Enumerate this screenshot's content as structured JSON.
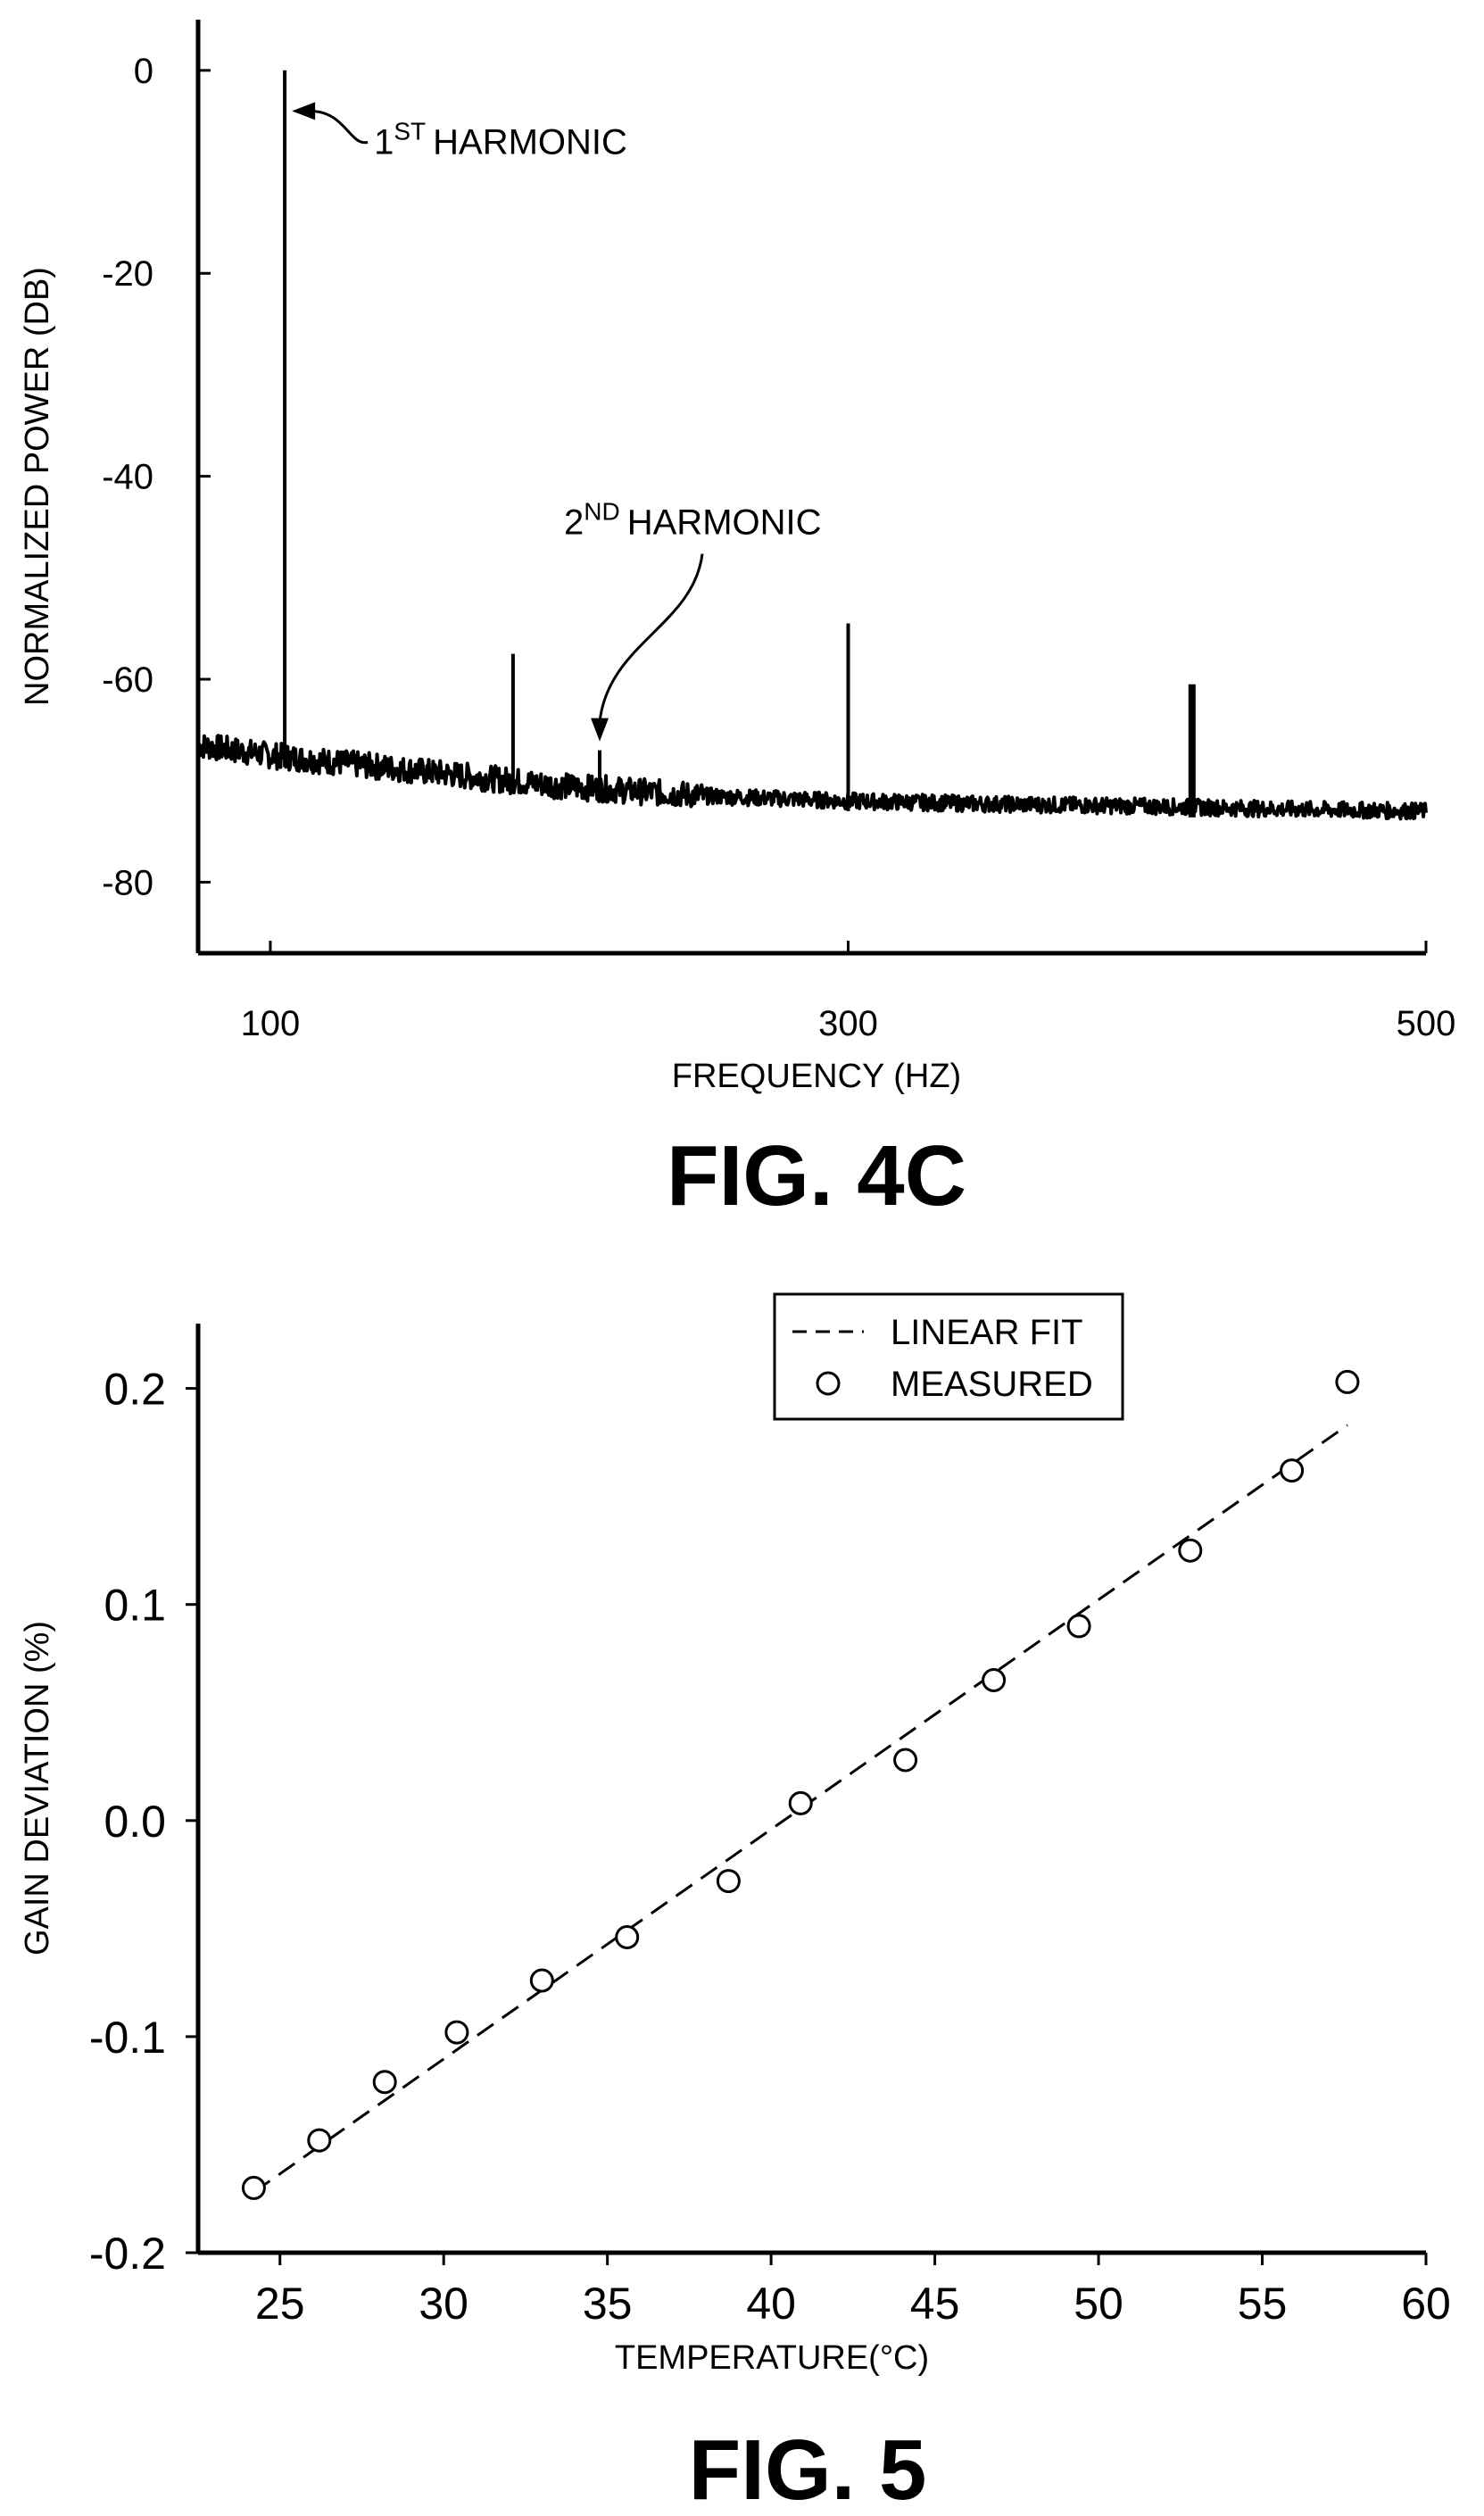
{
  "chart_data": [
    {
      "type": "line",
      "figure_label": "FIG. 4C",
      "xlabel": "FREQUENCY (HZ)",
      "ylabel": "NORMALIZED POWER (DB)",
      "xlim": [
        75,
        500
      ],
      "ylim": [
        -87,
        5
      ],
      "x_ticks": [
        100,
        300,
        500
      ],
      "y_ticks": [
        0,
        -20,
        -40,
        -60,
        -80
      ],
      "grid": false,
      "noise_floor": {
        "x": [
          75,
          100,
          150,
          200,
          250,
          300,
          350,
          400,
          450,
          500
        ],
        "y": [
          -66.5,
          -67.5,
          -69,
          -70.5,
          -71.5,
          -72,
          -72.3,
          -72.5,
          -72.8,
          -73
        ]
      },
      "peaks": [
        {
          "x": 105,
          "y": 0
        },
        {
          "x": 184,
          "y": -57.5
        },
        {
          "x": 214,
          "y": -67
        },
        {
          "x": 300,
          "y": -54.5
        },
        {
          "x": 419,
          "y": -60.5
        }
      ],
      "annotations": [
        {
          "sup": "ST",
          "prefix": "1",
          "text": "HARMONIC",
          "target_x": 105,
          "target_y": -4
        },
        {
          "sup": "ND",
          "prefix": "2",
          "text": "HARMONIC",
          "target_x": 214,
          "target_y": -67
        }
      ]
    },
    {
      "type": "scatter",
      "figure_label": "FIG. 5",
      "xlabel": "TEMPERATURE(°C)",
      "ylabel": "GAIN DEVIATION (%)",
      "xlim": [
        22.5,
        60
      ],
      "ylim": [
        -0.2,
        0.23
      ],
      "x_ticks": [
        25,
        30,
        35,
        40,
        45,
        50,
        55,
        60
      ],
      "y_ticks": [
        "0.2",
        "0.1",
        "0.0",
        "-0.1",
        "-0.2"
      ],
      "y_tick_values": [
        0.2,
        0.1,
        0.0,
        -0.1,
        -0.2
      ],
      "grid": false,
      "legend_position": "top-center",
      "series": [
        {
          "name": "LINEAR FIT",
          "style": "dashed-line",
          "x": [
            24.2,
            57.6
          ],
          "y": [
            -0.172,
            0.183
          ]
        },
        {
          "name": "MEASURED",
          "style": "open-circle",
          "x": [
            24.2,
            26.2,
            28.2,
            30.4,
            33.0,
            35.6,
            38.7,
            40.9,
            44.1,
            46.8,
            49.4,
            52.8,
            55.9,
            57.6
          ],
          "y": [
            -0.17,
            -0.148,
            -0.121,
            -0.098,
            -0.074,
            -0.054,
            -0.028,
            0.008,
            0.028,
            0.065,
            0.09,
            0.125,
            0.162,
            0.203
          ]
        }
      ]
    }
  ]
}
